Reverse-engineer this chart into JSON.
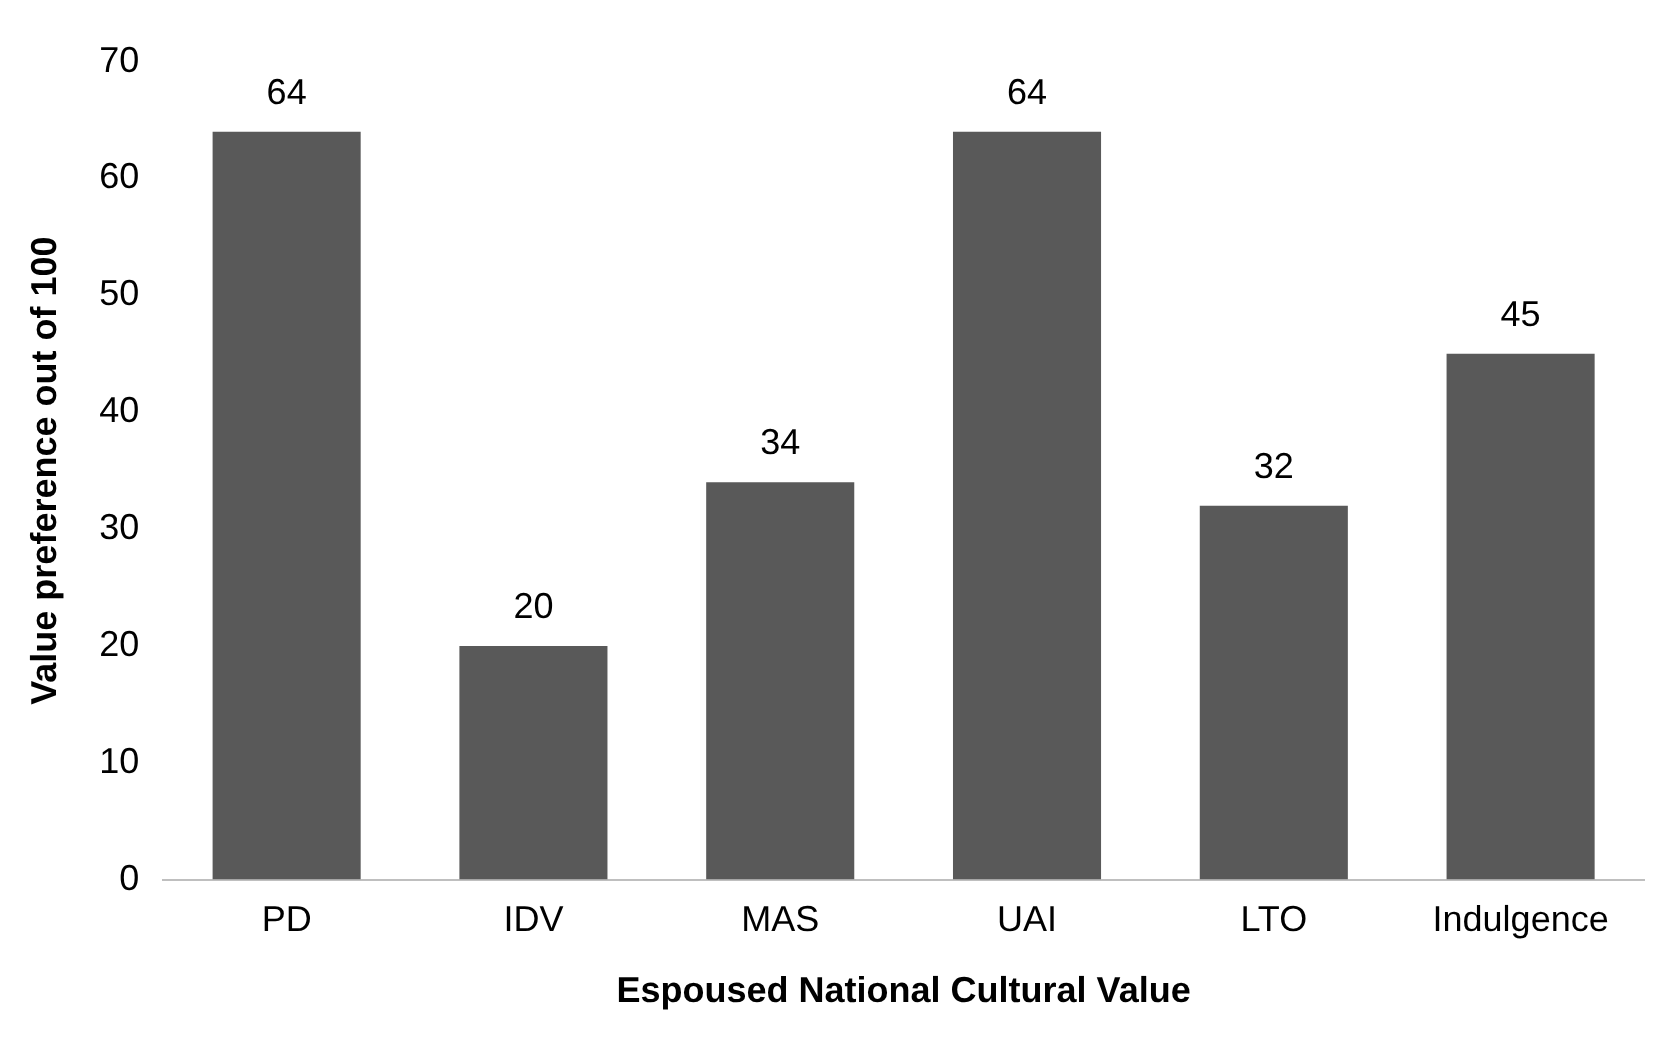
{
  "chart_data": {
    "type": "bar",
    "xlabel": "Espoused National Cultural Value",
    "ylabel": "Value preference out of 100",
    "categories": [
      "PD",
      "IDV",
      "MAS",
      "UAI",
      "LTO",
      "Indulgence"
    ],
    "values": [
      64,
      20,
      34,
      64,
      32,
      45
    ],
    "color": "#595959",
    "ylim": [
      0,
      70
    ],
    "yticks": [
      0,
      10,
      20,
      30,
      40,
      50,
      60,
      70
    ],
    "grid": false,
    "data_labels": true
  }
}
